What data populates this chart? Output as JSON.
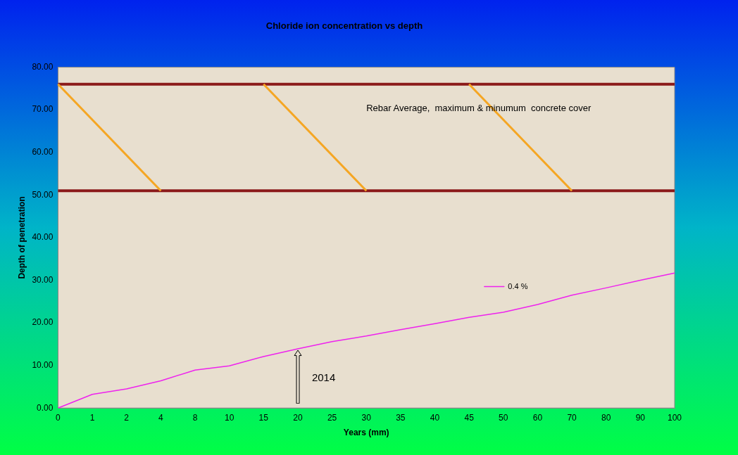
{
  "chart_data": {
    "type": "line",
    "title": "Chloride ion concentration vs depth",
    "xlabel": "Years (mm)",
    "ylabel": "Depth of penetration",
    "categories": [
      "0",
      "1",
      "2",
      "4",
      "8",
      "10",
      "15",
      "20",
      "25",
      "30",
      "35",
      "40",
      "45",
      "50",
      "60",
      "70",
      "80",
      "90",
      "100"
    ],
    "series": [
      {
        "name": "0.4 %",
        "color": "#ee22ee",
        "values": [
          0,
          3.2,
          4.5,
          6.4,
          8.9,
          9.9,
          12.1,
          13.9,
          15.6,
          16.9,
          18.4,
          19.8,
          21.3,
          22.5,
          24.3,
          26.5,
          28.2,
          30.0,
          31.7
        ]
      },
      {
        "color": "#f5a623",
        "values": [
          76,
          null,
          null,
          51,
          null,
          null,
          null,
          null,
          null,
          null,
          null,
          null,
          null,
          null,
          null,
          null,
          null,
          null,
          null
        ]
      },
      {
        "color": "#f5a623",
        "values": [
          null,
          null,
          null,
          null,
          null,
          null,
          76,
          null,
          null,
          51,
          null,
          null,
          null,
          null,
          null,
          null,
          null,
          null,
          null
        ]
      },
      {
        "color": "#f5a623",
        "values": [
          null,
          null,
          null,
          null,
          null,
          null,
          null,
          null,
          null,
          null,
          null,
          null,
          76,
          null,
          null,
          51,
          null,
          null,
          null
        ]
      }
    ],
    "ylim": [
      0,
      80
    ],
    "yticks": [
      {
        "value": 0,
        "label": "0.00"
      },
      {
        "value": 10,
        "label": "10.00"
      },
      {
        "value": 20,
        "label": "20.00"
      },
      {
        "value": 30,
        "label": "30.00"
      },
      {
        "value": 40,
        "label": "40.00"
      },
      {
        "value": 50,
        "label": "50.00"
      },
      {
        "value": 60,
        "label": "60.00"
      },
      {
        "value": 70,
        "label": "70.00"
      },
      {
        "value": 80,
        "label": "80.00"
      }
    ],
    "ref_lines": [
      {
        "axis": "y",
        "value": 76,
        "color": "#8b1a1a"
      },
      {
        "axis": "y",
        "value": 51,
        "color": "#8b1a1a"
      }
    ],
    "annotations": [
      "Rebar Average,  maximum & minumum  concrete cover",
      "2014"
    ],
    "grid": false,
    "legend": "right",
    "marker": "none",
    "line_style": "solid"
  }
}
